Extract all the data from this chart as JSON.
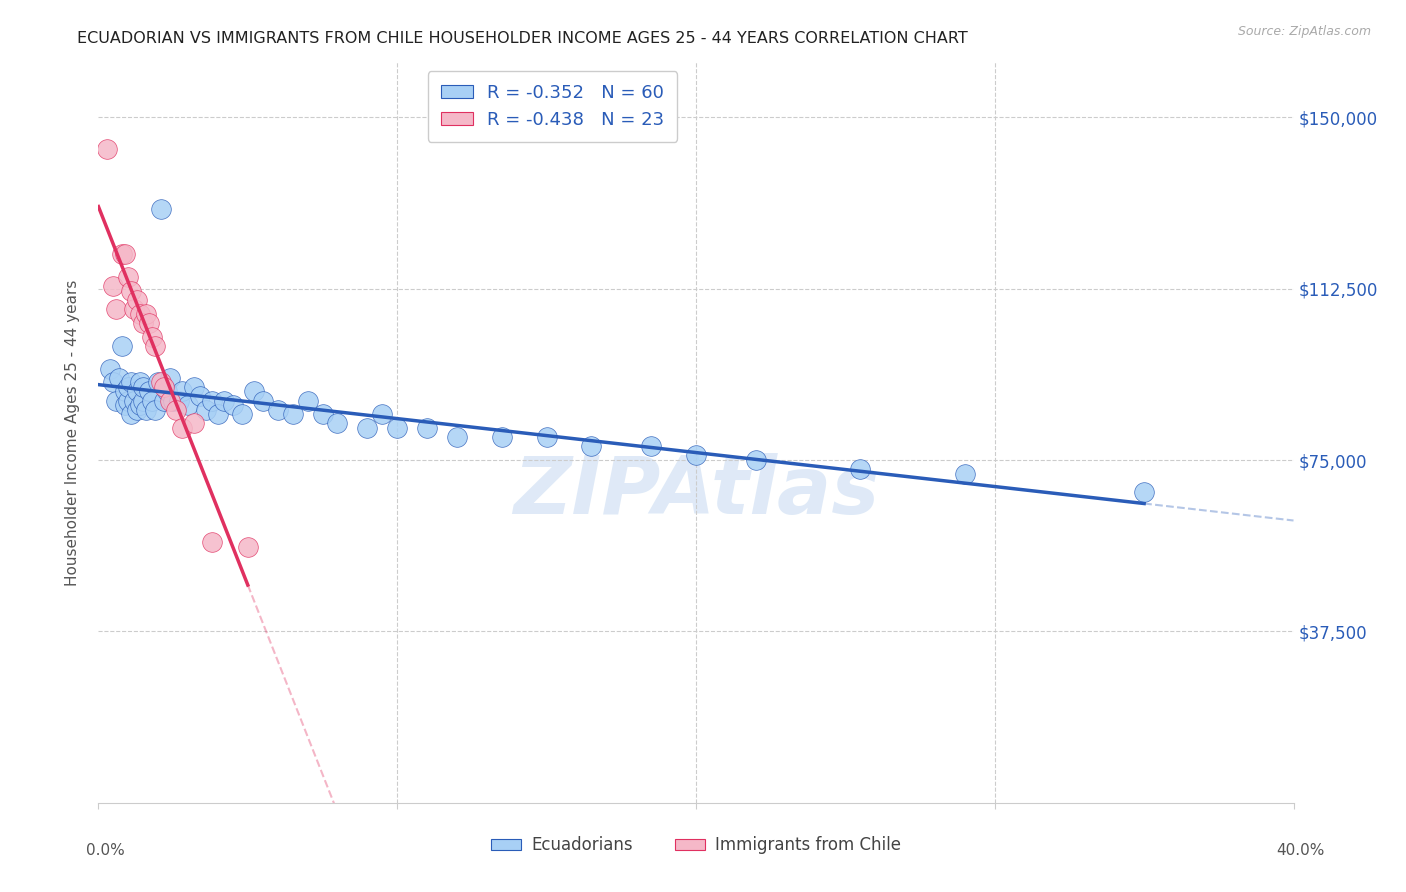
{
  "title": "ECUADORIAN VS IMMIGRANTS FROM CHILE HOUSEHOLDER INCOME AGES 25 - 44 YEARS CORRELATION CHART",
  "source": "Source: ZipAtlas.com",
  "ylabel": "Householder Income Ages 25 - 44 years",
  "xlim": [
    0.0,
    0.4
  ],
  "ylim": [
    0,
    162000
  ],
  "blue_R": "-0.352",
  "blue_N": "60",
  "pink_R": "-0.438",
  "pink_N": "23",
  "blue_color": "#a8d0f5",
  "pink_color": "#f5b8c8",
  "blue_line_color": "#2a5cb8",
  "pink_line_color": "#e03060",
  "watermark": "ZIPAtlas",
  "legend_label_blue": "Ecuadorians",
  "legend_label_pink": "Immigrants from Chile",
  "ytick_vals": [
    37500,
    75000,
    112500,
    150000
  ],
  "ytick_labels": [
    "$37,500",
    "$75,000",
    "$112,500",
    "$150,000"
  ],
  "ecuadorians_x": [
    0.004,
    0.005,
    0.006,
    0.007,
    0.008,
    0.009,
    0.009,
    0.01,
    0.01,
    0.011,
    0.011,
    0.012,
    0.013,
    0.013,
    0.014,
    0.014,
    0.015,
    0.015,
    0.016,
    0.017,
    0.018,
    0.019,
    0.02,
    0.021,
    0.022,
    0.023,
    0.024,
    0.025,
    0.027,
    0.028,
    0.03,
    0.032,
    0.034,
    0.036,
    0.038,
    0.04,
    0.042,
    0.045,
    0.048,
    0.052,
    0.055,
    0.06,
    0.065,
    0.07,
    0.075,
    0.08,
    0.09,
    0.095,
    0.1,
    0.11,
    0.12,
    0.135,
    0.15,
    0.165,
    0.185,
    0.2,
    0.22,
    0.255,
    0.29,
    0.35
  ],
  "ecuadorians_y": [
    95000,
    92000,
    88000,
    93000,
    100000,
    87000,
    90000,
    88000,
    91000,
    85000,
    92000,
    88000,
    90000,
    86000,
    92000,
    87000,
    88000,
    91000,
    86000,
    90000,
    88000,
    86000,
    92000,
    130000,
    88000,
    90000,
    93000,
    88000,
    88000,
    90000,
    87000,
    91000,
    89000,
    86000,
    88000,
    85000,
    88000,
    87000,
    85000,
    90000,
    88000,
    86000,
    85000,
    88000,
    85000,
    83000,
    82000,
    85000,
    82000,
    82000,
    80000,
    80000,
    80000,
    78000,
    78000,
    76000,
    75000,
    73000,
    72000,
    68000
  ],
  "chile_x": [
    0.003,
    0.005,
    0.006,
    0.008,
    0.009,
    0.01,
    0.011,
    0.012,
    0.013,
    0.014,
    0.015,
    0.016,
    0.017,
    0.018,
    0.019,
    0.021,
    0.022,
    0.024,
    0.026,
    0.028,
    0.032,
    0.038,
    0.05
  ],
  "chile_y": [
    143000,
    113000,
    108000,
    120000,
    120000,
    115000,
    112000,
    108000,
    110000,
    107000,
    105000,
    107000,
    105000,
    102000,
    100000,
    92000,
    91000,
    88000,
    86000,
    82000,
    83000,
    57000,
    56000
  ]
}
